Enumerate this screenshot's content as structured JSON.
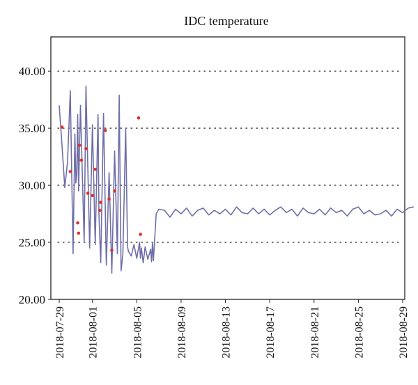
{
  "chart_data": {
    "type": "line",
    "title": "IDC temperature",
    "xlabel": "",
    "ylabel": "",
    "xlim": [
      "2018-07-29",
      "2018-08-30"
    ],
    "ylim": [
      20,
      43
    ],
    "y_ticks": [
      "20.00",
      "25.00",
      "30.00",
      "35.00",
      "40.00"
    ],
    "x_ticks": [
      "2018-07-29",
      "2018-08-01",
      "2018-08-05",
      "2018-08-09",
      "2018-08-13",
      "2018-08-17",
      "2018-08-21",
      "2018-08-25",
      "2018-08-29"
    ],
    "grid": "horizontal dotted",
    "colors": {
      "line": "#6f6fa8",
      "marker": "#e0302a"
    },
    "series": [
      {
        "x": [
          "2018-07-29T00:00",
          "2018-07-29T06:00",
          "2018-07-29T12:00",
          "2018-07-29T18:00",
          "2018-07-30T00:00",
          "2018-07-30T06:00",
          "2018-07-30T10:00",
          "2018-07-30T12:00",
          "2018-07-30T14:00",
          "2018-07-30T16:00",
          "2018-07-30T18:00",
          "2018-07-30T22:00",
          "2018-07-31T06:00",
          "2018-07-31T10:00",
          "2018-07-31T18:00",
          "2018-08-01T00:00",
          "2018-08-01T06:00",
          "2018-08-01T12:00",
          "2018-08-01T14:00",
          "2018-08-01T18:00",
          "2018-08-02T00:00",
          "2018-08-02T06:00",
          "2018-08-02T12:00",
          "2018-08-02T18:00",
          "2018-08-03T00:00",
          "2018-08-03T06:00",
          "2018-08-03T10:00",
          "2018-08-03T14:00",
          "2018-08-03T18:00",
          "2018-08-04T00:00",
          "2018-08-04T04:00",
          "2018-08-04T06:00",
          "2018-08-04T12:00",
          "2018-08-04T18:00",
          "2018-08-05T00:00",
          "2018-08-05T06:00",
          "2018-08-05T08:00",
          "2018-08-05T10:00",
          "2018-08-05T14:00",
          "2018-08-05T18:00",
          "2018-08-06T00:00",
          "2018-08-06T06:00",
          "2018-08-06T08:00",
          "2018-08-06T10:00",
          "2018-08-06T12:00",
          "2018-08-06T18:00",
          "2018-08-07T00:00",
          "2018-08-07T12:00",
          "2018-08-08T00:00",
          "2018-08-08T12:00",
          "2018-08-09T00:00",
          "2018-08-09T12:00",
          "2018-08-10T00:00",
          "2018-08-10T12:00",
          "2018-08-11T00:00",
          "2018-08-11T12:00",
          "2018-08-12T00:00",
          "2018-08-12T12:00",
          "2018-08-13T00:00",
          "2018-08-13T12:00",
          "2018-08-14T00:00",
          "2018-08-14T12:00",
          "2018-08-15T00:00",
          "2018-08-15T12:00",
          "2018-08-16T00:00",
          "2018-08-16T12:00",
          "2018-08-17T00:00",
          "2018-08-17T12:00",
          "2018-08-18T00:00",
          "2018-08-18T12:00",
          "2018-08-19T00:00",
          "2018-08-19T12:00",
          "2018-08-20T00:00",
          "2018-08-20T12:00",
          "2018-08-21T00:00",
          "2018-08-21T12:00",
          "2018-08-22T00:00",
          "2018-08-22T12:00",
          "2018-08-23T00:00",
          "2018-08-23T12:00",
          "2018-08-24T00:00",
          "2018-08-24T12:00",
          "2018-08-25T00:00",
          "2018-08-25T12:00",
          "2018-08-26T00:00",
          "2018-08-26T12:00",
          "2018-08-27T00:00",
          "2018-08-27T12:00",
          "2018-08-28T00:00",
          "2018-08-28T12:00",
          "2018-08-29T00:00",
          "2018-08-29T12:00",
          "2018-08-30T00:00"
        ],
        "y": [
          37.0,
          33.5,
          29.8,
          32.0,
          38.3,
          24.0,
          34.5,
          30.2,
          31.0,
          36.2,
          29.5,
          37.0,
          25.0,
          38.7,
          24.5,
          35.3,
          24.8,
          36.2,
          27.5,
          23.2,
          36.3,
          23.0,
          31.1,
          22.3,
          33.0,
          24.0,
          37.9,
          22.5,
          24.0,
          35.0,
          24.6,
          24.2,
          23.8,
          24.8,
          23.6,
          25.0,
          23.6,
          24.5,
          23.2,
          24.6,
          23.5,
          24.4,
          23.3,
          25.0,
          23.4,
          27.5,
          27.9,
          27.8,
          27.2,
          27.9,
          27.5,
          28.0,
          27.3,
          27.8,
          28.0,
          27.4,
          27.8,
          27.5,
          27.9,
          27.4,
          28.1,
          27.6,
          27.5,
          28.0,
          27.5,
          27.9,
          27.4,
          27.8,
          28.1,
          27.6,
          27.9,
          27.3,
          28.0,
          27.6,
          27.5,
          27.9,
          27.4,
          28.0,
          27.6,
          27.8,
          27.3,
          27.9,
          28.1,
          27.5,
          27.8,
          27.4,
          27.5,
          27.8,
          27.3,
          27.9,
          27.6,
          28.0,
          28.1
        ]
      },
      {
        "x": [
          "2018-07-29T06:00",
          "2018-07-30T00:00",
          "2018-07-30T16:00",
          "2018-07-30T18:00",
          "2018-07-30T20:00",
          "2018-07-31T00:00",
          "2018-07-31T10:00",
          "2018-07-31T14:00",
          "2018-08-01T00:00",
          "2018-08-01T06:00",
          "2018-08-01T16:00",
          "2018-08-01T18:00",
          "2018-08-02T04:00",
          "2018-08-02T12:00",
          "2018-08-02T18:00",
          "2018-08-03T00:00",
          "2018-08-05T04:00",
          "2018-08-05T08:00"
        ],
        "y": [
          35.1,
          31.2,
          26.7,
          25.8,
          33.5,
          32.2,
          33.2,
          29.3,
          29.1,
          31.4,
          27.8,
          28.5,
          34.8,
          28.8,
          24.3,
          29.5,
          35.9,
          25.7
        ]
      }
    ]
  }
}
